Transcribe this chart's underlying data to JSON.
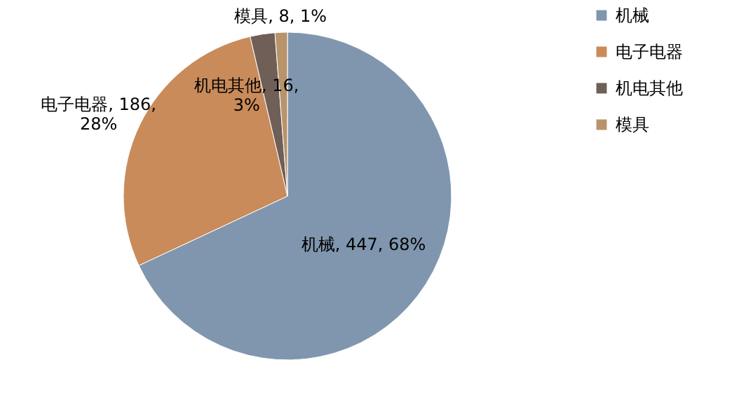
{
  "chart_data": {
    "type": "pie",
    "categories": [
      "机械",
      "电子电器",
      "机电其他",
      "模具"
    ],
    "values": [
      447,
      186,
      16,
      8
    ],
    "colors": [
      "#7f96ae",
      "#c98b5a",
      "#6f5f57",
      "#b8946b"
    ],
    "value_labels": [
      "机械, 447, 68%",
      "电子电器, 186, 28%",
      "机电其他, 16, 3%",
      "模具, 8, 1%"
    ],
    "legend": "right"
  }
}
